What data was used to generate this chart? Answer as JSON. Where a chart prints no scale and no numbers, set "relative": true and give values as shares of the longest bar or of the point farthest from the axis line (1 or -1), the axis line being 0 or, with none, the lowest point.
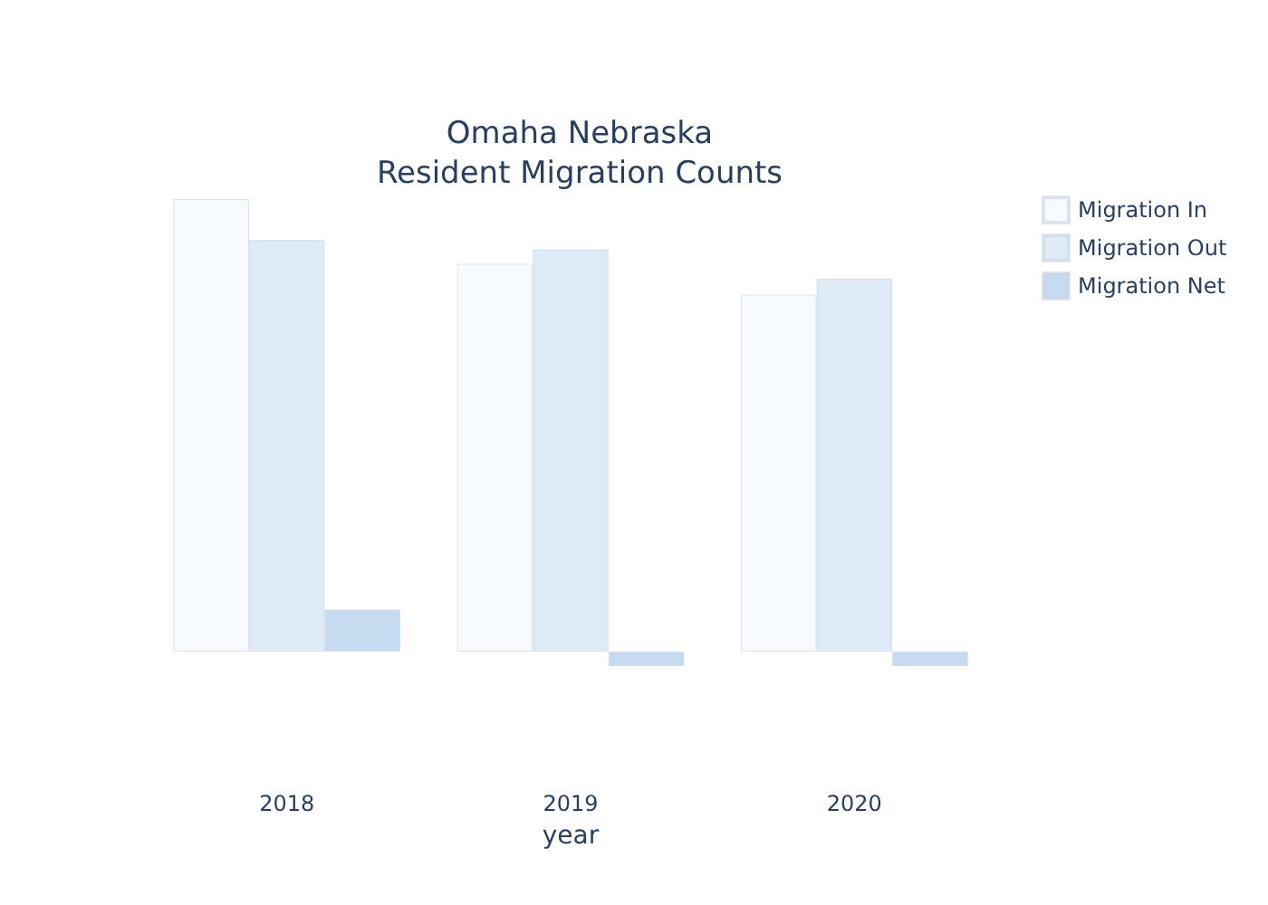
{
  "chart_data": {
    "type": "bar",
    "title": "Omaha Nebraska\nResident Migration Counts",
    "xlabel": "year",
    "categories": [
      "2018",
      "2019",
      "2020"
    ],
    "relative": true,
    "legend": "top right",
    "series": [
      {
        "name": "Migration In",
        "color": "#f7fbff",
        "values": [
          1,
          0.857,
          0.789
        ]
      },
      {
        "name": "Migration Out",
        "color": "#deebf7",
        "values": [
          0.91,
          0.889,
          0.824
        ]
      },
      {
        "name": "Migration Net",
        "color": "#c6dbef",
        "values": [
          0.093,
          -0.032,
          -0.032
        ]
      }
    ]
  }
}
